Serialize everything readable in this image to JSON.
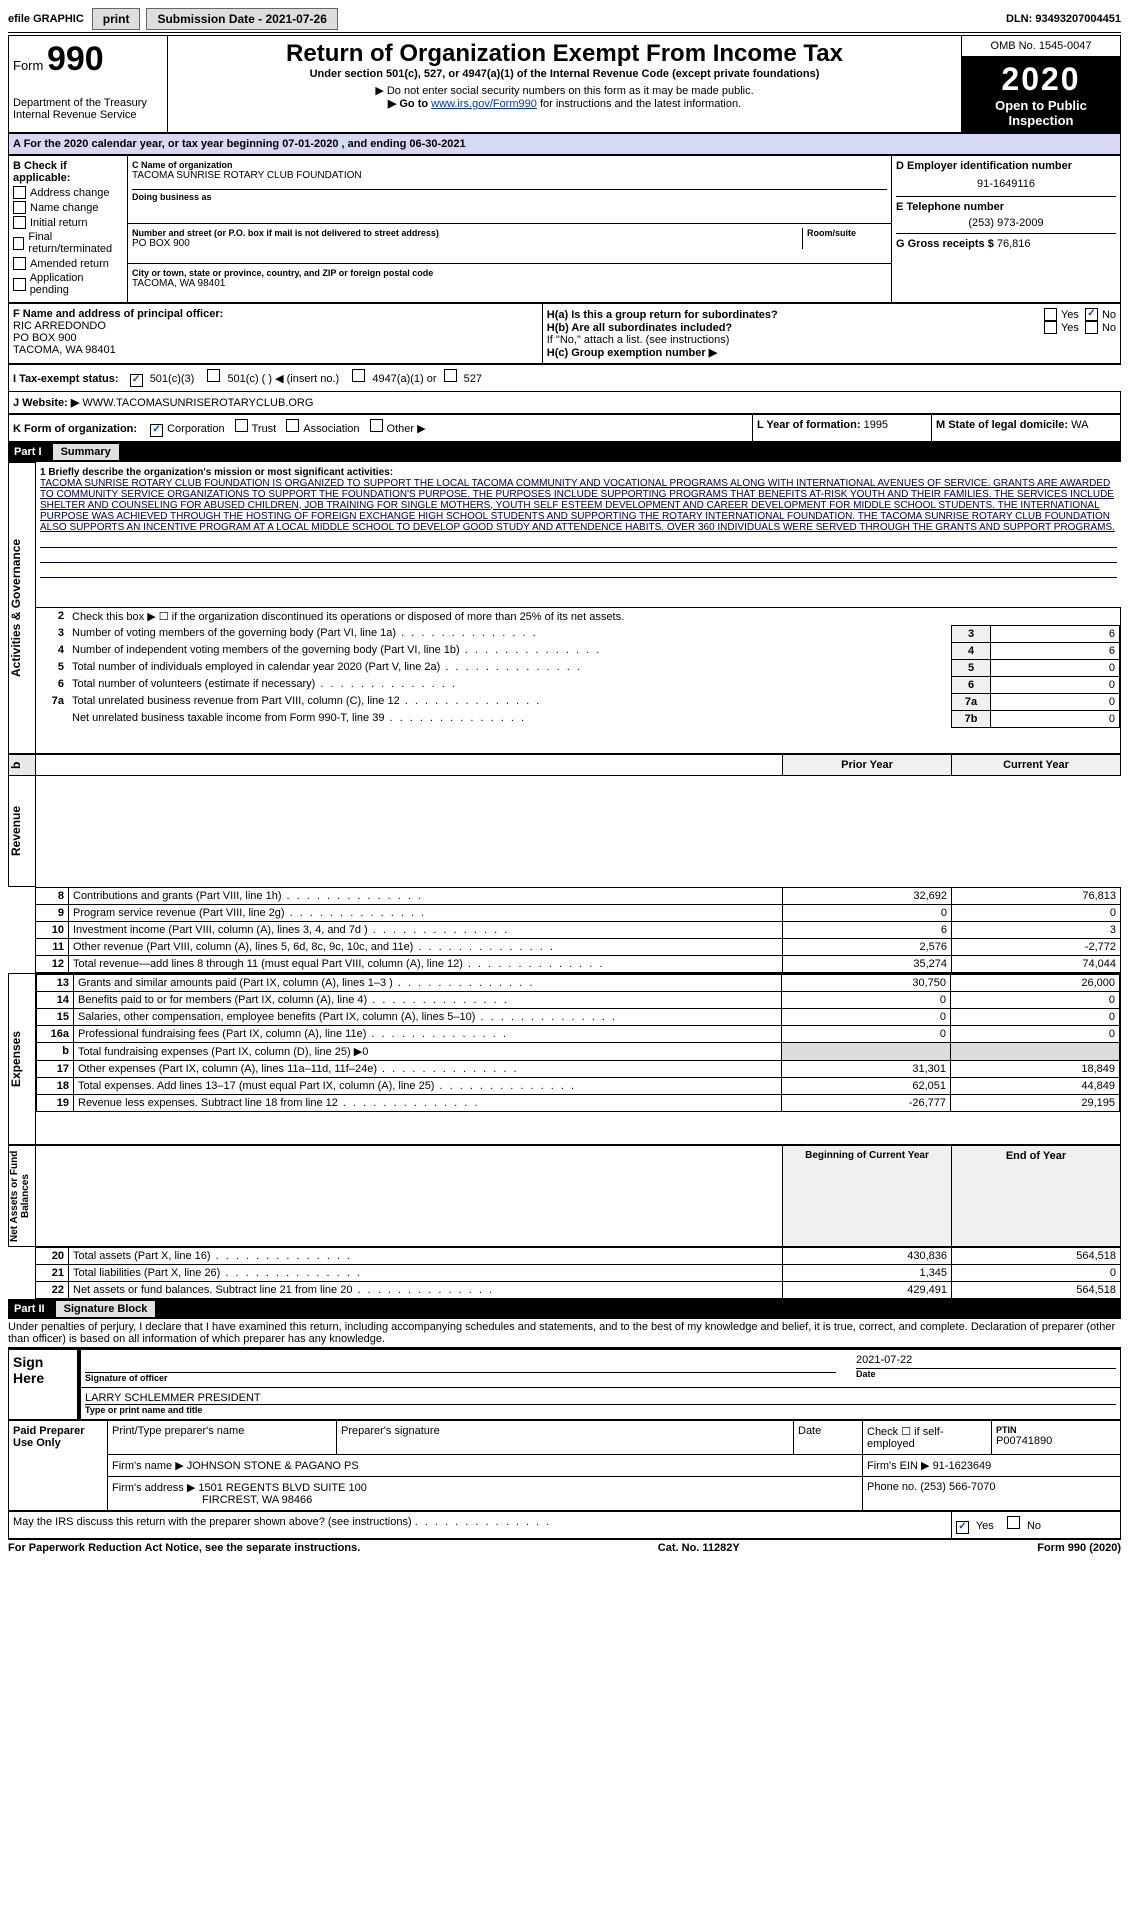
{
  "topbar": {
    "efile": "efile GRAPHIC",
    "print": "print",
    "submission": "Submission Date - 2021-07-26",
    "dln": "DLN: 93493207004451"
  },
  "header": {
    "form_label": "Form",
    "form_number": "990",
    "dept": "Department of the Treasury\nInternal Revenue Service",
    "title": "Return of Organization Exempt From Income Tax",
    "subtitle": "Under section 501(c), 527, or 4947(a)(1) of the Internal Revenue Code (except private foundations)",
    "note1": "▶ Do not enter social security numbers on this form as it may be made public.",
    "note2": "▶ Go to ",
    "note2_link": "www.irs.gov/Form990",
    "note2_suffix": " for instructions and the latest information.",
    "omb": "OMB No. 1545-0047",
    "year": "2020",
    "open": "Open to Public\nInspection"
  },
  "period": {
    "text": "A For the 2020 calendar year, or tax year beginning 07-01-2020   , and ending 06-30-2021"
  },
  "sectionB": {
    "heading": "B Check if applicable:",
    "items": [
      "Address change",
      "Name change",
      "Initial return",
      "Final return/terminated",
      "Amended return",
      "Application pending"
    ]
  },
  "sectionC": {
    "name_label": "C Name of organization",
    "name": "TACOMA SUNRISE ROTARY CLUB FOUNDATION",
    "dba_label": "Doing business as",
    "dba": "",
    "addr_label": "Number and street (or P.O. box if mail is not delivered to street address)",
    "addr": "PO BOX 900",
    "room_label": "Room/suite",
    "city_label": "City or town, state or province, country, and ZIP or foreign postal code",
    "city": "TACOMA, WA  98401"
  },
  "sectionD": {
    "label": "D Employer identification number",
    "ein": "91-1649116"
  },
  "sectionE": {
    "label": "E Telephone number",
    "phone": "(253) 973-2009"
  },
  "sectionG": {
    "label": "G Gross receipts $",
    "amount": "76,816"
  },
  "sectionF": {
    "label": "F Name and address of principal officer:",
    "name": "RIC ARREDONDO",
    "addr1": "PO BOX 900",
    "addr2": "TACOMA, WA  98401"
  },
  "sectionH": {
    "a_label": "H(a)  Is this a group return for subordinates?",
    "b_label": "H(b)  Are all subordinates included?",
    "b_note": "If \"No,\" attach a list. (see instructions)",
    "c_label": "H(c)  Group exemption number ▶",
    "yes": "Yes",
    "no": "No"
  },
  "sectionI": {
    "label": "I Tax-exempt status:",
    "opt1": "501(c)(3)",
    "opt2": "501(c) (   ) ◀ (insert no.)",
    "opt3": "4947(a)(1) or",
    "opt4": "527"
  },
  "sectionJ": {
    "label": "J Website: ▶",
    "value": "WWW.TACOMASUNRISEROTARYCLUB.ORG"
  },
  "sectionK": {
    "label": "K Form of organization:",
    "opts": [
      "Corporation",
      "Trust",
      "Association",
      "Other ▶"
    ]
  },
  "sectionL": {
    "label": "L Year of formation:",
    "value": "1995"
  },
  "sectionM": {
    "label": "M State of legal domicile:",
    "value": "WA"
  },
  "part1": {
    "label": "Part I",
    "title": "Summary"
  },
  "mission": {
    "prompt": "1  Briefly describe the organization's mission or most significant activities:",
    "text": "TACOMA SUNRISE ROTARY CLUB FOUNDATION IS ORGANIZED TO SUPPORT THE LOCAL TACOMA COMMUNITY AND VOCATIONAL PROGRAMS ALONG WITH INTERNATIONAL AVENUES OF SERVICE. GRANTS ARE AWARDED TO COMMUNITY SERVICE ORGANIZATIONS TO SUPPORT THE FOUNDATION'S PURPOSE. THE PURPOSES INCLUDE SUPPORTING PROGRAMS THAT BENEFITS AT-RISK YOUTH AND THEIR FAMILIES. THE SERVICES INCLUDE SHELTER AND COUNSELING FOR ABUSED CHILDREN, JOB TRAINING FOR SINGLE MOTHERS, YOUTH SELF ESTEEM DEVELOPMENT AND CAREER DEVELOPMENT FOR MIDDLE SCHOOL STUDENTS. THE INTERNATIONAL PURPOSE WAS ACHIEVED THROUGH THE HOSTING OF FOREIGN EXCHANGE HIGH SCHOOL STUDENTS AND SUPPORTING THE ROTARY INTERNATIONAL FOUNDATION. THE TACOMA SUNRISE ROTARY CLUB FOUNDATION ALSO SUPPORTS AN INCENTIVE PROGRAM AT A LOCAL MIDDLE SCHOOL TO DEVELOP GOOD STUDY AND ATTENDENCE HABITS. OVER 360 INDIVIDUALS WERE SERVED THROUGH THE GRANTS AND SUPPORT PROGRAMS."
  },
  "governance": {
    "side_label": "Activities & Governance",
    "lines": [
      {
        "n": "2",
        "text": "Check this box ▶ ☐ if the organization discontinued its operations or disposed of more than 25% of its net assets.",
        "box": "",
        "val": ""
      },
      {
        "n": "3",
        "text": "Number of voting members of the governing body (Part VI, line 1a)",
        "box": "3",
        "val": "6"
      },
      {
        "n": "4",
        "text": "Number of independent voting members of the governing body (Part VI, line 1b)",
        "box": "4",
        "val": "6"
      },
      {
        "n": "5",
        "text": "Total number of individuals employed in calendar year 2020 (Part V, line 2a)",
        "box": "5",
        "val": "0"
      },
      {
        "n": "6",
        "text": "Total number of volunteers (estimate if necessary)",
        "box": "6",
        "val": "0"
      },
      {
        "n": "7a",
        "text": "Total unrelated business revenue from Part VIII, column (C), line 12",
        "box": "7a",
        "val": "0"
      },
      {
        "n": "",
        "text": "Net unrelated business taxable income from Form 990-T, line 39",
        "box": "7b",
        "val": "0"
      }
    ]
  },
  "revenue": {
    "side_label": "Revenue",
    "header_b": "b",
    "col_prior": "Prior Year",
    "col_current": "Current Year",
    "rows": [
      {
        "n": "8",
        "text": "Contributions and grants (Part VIII, line 1h)",
        "prior": "32,692",
        "curr": "76,813"
      },
      {
        "n": "9",
        "text": "Program service revenue (Part VIII, line 2g)",
        "prior": "0",
        "curr": "0"
      },
      {
        "n": "10",
        "text": "Investment income (Part VIII, column (A), lines 3, 4, and 7d )",
        "prior": "6",
        "curr": "3"
      },
      {
        "n": "11",
        "text": "Other revenue (Part VIII, column (A), lines 5, 6d, 8c, 9c, 10c, and 11e)",
        "prior": "2,576",
        "curr": "-2,772"
      },
      {
        "n": "12",
        "text": "Total revenue—add lines 8 through 11 (must equal Part VIII, column (A), line 12)",
        "prior": "35,274",
        "curr": "74,044"
      }
    ]
  },
  "expenses": {
    "side_label": "Expenses",
    "rows": [
      {
        "n": "13",
        "text": "Grants and similar amounts paid (Part IX, column (A), lines 1–3 )",
        "prior": "30,750",
        "curr": "26,000"
      },
      {
        "n": "14",
        "text": "Benefits paid to or for members (Part IX, column (A), line 4)",
        "prior": "0",
        "curr": "0"
      },
      {
        "n": "15",
        "text": "Salaries, other compensation, employee benefits (Part IX, column (A), lines 5–10)",
        "prior": "0",
        "curr": "0"
      },
      {
        "n": "16a",
        "text": "Professional fundraising fees (Part IX, column (A), line 11e)",
        "prior": "0",
        "curr": "0"
      },
      {
        "n": "b",
        "text": "Total fundraising expenses (Part IX, column (D), line 25) ▶0",
        "prior": "",
        "curr": ""
      },
      {
        "n": "17",
        "text": "Other expenses (Part IX, column (A), lines 11a–11d, 11f–24e)",
        "prior": "31,301",
        "curr": "18,849"
      },
      {
        "n": "18",
        "text": "Total expenses. Add lines 13–17 (must equal Part IX, column (A), line 25)",
        "prior": "62,051",
        "curr": "44,849"
      },
      {
        "n": "19",
        "text": "Revenue less expenses. Subtract line 18 from line 12",
        "prior": "-26,777",
        "curr": "29,195"
      }
    ]
  },
  "netassets": {
    "side_label": "Net Assets or Fund Balances",
    "col_begin": "Beginning of Current Year",
    "col_end": "End of Year",
    "rows": [
      {
        "n": "20",
        "text": "Total assets (Part X, line 16)",
        "begin": "430,836",
        "end": "564,518"
      },
      {
        "n": "21",
        "text": "Total liabilities (Part X, line 26)",
        "begin": "1,345",
        "end": "0"
      },
      {
        "n": "22",
        "text": "Net assets or fund balances. Subtract line 21 from line 20",
        "begin": "429,491",
        "end": "564,518"
      }
    ]
  },
  "part2": {
    "label": "Part II",
    "title": "Signature Block",
    "perjury": "Under penalties of perjury, I declare that I have examined this return, including accompanying schedules and statements, and to the best of my knowledge and belief, it is true, correct, and complete. Declaration of preparer (other than officer) is based on all information of which preparer has any knowledge."
  },
  "sign": {
    "label": "Sign Here",
    "sig_officer": "Signature of officer",
    "date_label": "Date",
    "date": "2021-07-22",
    "name_title": "LARRY SCHLEMMER  PRESIDENT",
    "name_title_label": "Type or print name and title"
  },
  "paid": {
    "label": "Paid Preparer Use Only",
    "col_print": "Print/Type preparer's name",
    "col_sig": "Preparer's signature",
    "col_date": "Date",
    "check_label": "Check ☐ if self-employed",
    "ptin_label": "PTIN",
    "ptin": "P00741890",
    "firm_name_label": "Firm's name    ▶",
    "firm_name": "JOHNSON STONE & PAGANO PS",
    "firm_ein_label": "Firm's EIN ▶",
    "firm_ein": "91-1623649",
    "firm_addr_label": "Firm's address ▶",
    "firm_addr1": "1501 REGENTS BLVD SUITE 100",
    "firm_addr2": "FIRCREST, WA  98466",
    "phone_label": "Phone no.",
    "phone": "(253) 566-7070"
  },
  "discuss": {
    "text": "May the IRS discuss this return with the preparer shown above? (see instructions)",
    "yes": "Yes",
    "no": "No"
  },
  "footer": {
    "left": "For Paperwork Reduction Act Notice, see the separate instructions.",
    "mid": "Cat. No. 11282Y",
    "right": "Form 990 (2020)"
  }
}
